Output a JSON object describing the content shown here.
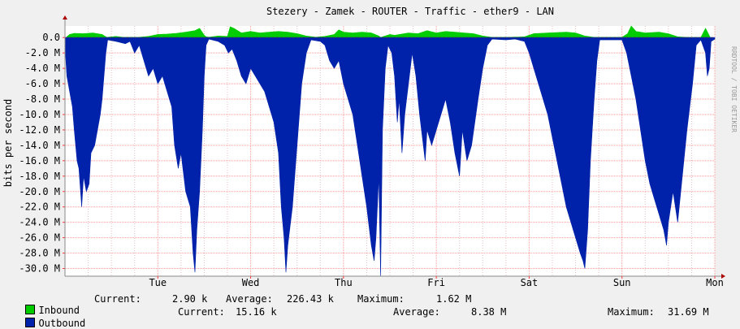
{
  "chart_data": {
    "type": "area",
    "title": "Stezery - Zamek - ROUTER - Traffic - ether9 - LAN",
    "ylabel": "bits per second",
    "watermark": "RRDTOOL / TOBI OETIKER",
    "ylim": [
      -31000000,
      1500000
    ],
    "y_ticks": [
      {
        "value": 0,
        "label": "0.0"
      },
      {
        "value": -2000000,
        "label": "-2.0 M"
      },
      {
        "value": -4000000,
        "label": "-4.0 M"
      },
      {
        "value": -6000000,
        "label": "-6.0 M"
      },
      {
        "value": -8000000,
        "label": "-8.0 M"
      },
      {
        "value": -10000000,
        "label": "-10.0 M"
      },
      {
        "value": -12000000,
        "label": "-12.0 M"
      },
      {
        "value": -14000000,
        "label": "-14.0 M"
      },
      {
        "value": -16000000,
        "label": "-16.0 M"
      },
      {
        "value": -18000000,
        "label": "-18.0 M"
      },
      {
        "value": -20000000,
        "label": "-20.0 M"
      },
      {
        "value": -22000000,
        "label": "-22.0 M"
      },
      {
        "value": -24000000,
        "label": "-24.0 M"
      },
      {
        "value": -26000000,
        "label": "-26.0 M"
      },
      {
        "value": -28000000,
        "label": "-28.0 M"
      },
      {
        "value": -30000000,
        "label": "-30.0 M"
      }
    ],
    "x_unit": "day",
    "xlim": [
      0,
      7
    ],
    "x_ticks": [
      {
        "value": 1,
        "label": "Tue"
      },
      {
        "value": 2,
        "label": "Wed"
      },
      {
        "value": 3,
        "label": "Thu"
      },
      {
        "value": 4,
        "label": "Fri"
      },
      {
        "value": 5,
        "label": "Sat"
      },
      {
        "value": 6,
        "label": "Sun"
      },
      {
        "value": 7,
        "label": "Mon"
      }
    ],
    "grid": true,
    "legend_position": "bottom",
    "series": [
      {
        "name": "Inbound",
        "color": "#00cc00",
        "current": "2.90 k",
        "average": "226.43 k",
        "maximum": "1.62 M",
        "points": [
          [
            0.02,
            100000.0
          ],
          [
            0.05,
            400000.0
          ],
          [
            0.1,
            550000.0
          ],
          [
            0.2,
            500000.0
          ],
          [
            0.3,
            600000.0
          ],
          [
            0.4,
            400000.0
          ],
          [
            0.45,
            30000.0
          ],
          [
            0.55,
            150000.0
          ],
          [
            0.62,
            50000.0
          ],
          [
            0.7,
            30000.0
          ],
          [
            0.8,
            40000.0
          ],
          [
            0.9,
            150000.0
          ],
          [
            1.0,
            400000.0
          ],
          [
            1.1,
            450000.0
          ],
          [
            1.2,
            550000.0
          ],
          [
            1.3,
            700000.0
          ],
          [
            1.4,
            900000.0
          ],
          [
            1.45,
            1200000.0
          ],
          [
            1.5,
            300000.0
          ],
          [
            1.52,
            100000.0
          ],
          [
            1.55,
            50000.0
          ],
          [
            1.65,
            200000.0
          ],
          [
            1.75,
            150000.0
          ],
          [
            1.78,
            1400000.0
          ],
          [
            1.82,
            1200000.0
          ],
          [
            1.9,
            600000.0
          ],
          [
            2.0,
            800000.0
          ],
          [
            2.1,
            600000.0
          ],
          [
            2.2,
            700000.0
          ],
          [
            2.3,
            800000.0
          ],
          [
            2.4,
            700000.0
          ],
          [
            2.5,
            500000.0
          ],
          [
            2.6,
            200000.0
          ],
          [
            2.7,
            50000.0
          ],
          [
            2.8,
            150000.0
          ],
          [
            2.9,
            400000.0
          ],
          [
            2.95,
            1000000.0
          ],
          [
            3.0,
            700000.0
          ],
          [
            3.1,
            600000.0
          ],
          [
            3.2,
            700000.0
          ],
          [
            3.3,
            600000.0
          ],
          [
            3.38,
            200000.0
          ],
          [
            3.4,
            20000.0
          ],
          [
            3.5,
            400000.0
          ],
          [
            3.55,
            300000.0
          ],
          [
            3.7,
            600000.0
          ],
          [
            3.8,
            500000.0
          ],
          [
            3.9,
            900000.0
          ],
          [
            4.0,
            600000.0
          ],
          [
            4.1,
            800000.0
          ],
          [
            4.2,
            700000.0
          ],
          [
            4.3,
            600000.0
          ],
          [
            4.4,
            500000.0
          ],
          [
            4.5,
            200000.0
          ],
          [
            4.6,
            30000.0
          ],
          [
            4.8,
            40000.0
          ],
          [
            4.95,
            100000.0
          ],
          [
            5.05,
            500000.0
          ],
          [
            5.2,
            600000.0
          ],
          [
            5.4,
            700000.0
          ],
          [
            5.5,
            600000.0
          ],
          [
            5.6,
            200000.0
          ],
          [
            5.7,
            30000.0
          ],
          [
            5.9,
            30000.0
          ],
          [
            6.0,
            30000.0
          ],
          [
            6.06,
            500000.0
          ],
          [
            6.1,
            1500000.0
          ],
          [
            6.15,
            800000.0
          ],
          [
            6.25,
            600000.0
          ],
          [
            6.4,
            700000.0
          ],
          [
            6.5,
            500000.0
          ],
          [
            6.6,
            100000.0
          ],
          [
            6.7,
            30000.0
          ],
          [
            6.85,
            20000.0
          ],
          [
            6.9,
            1200000.0
          ],
          [
            6.93,
            500000.0
          ],
          [
            6.95,
            30000.0
          ]
        ]
      },
      {
        "name": "Outbound",
        "color": "#0022aa",
        "current": "15.16 k",
        "average": "8.38 M",
        "maximum": "31.69 M",
        "points": [
          [
            0.0,
            -1000000.0
          ],
          [
            0.02,
            -5000000.0
          ],
          [
            0.05,
            -7000000.0
          ],
          [
            0.08,
            -9000000.0
          ],
          [
            0.1,
            -12000000.0
          ],
          [
            0.13,
            -16000000.0
          ],
          [
            0.15,
            -17000000.0
          ],
          [
            0.18,
            -22000000.0
          ],
          [
            0.2,
            -18000000.0
          ],
          [
            0.23,
            -20000000.0
          ],
          [
            0.26,
            -19000000.0
          ],
          [
            0.28,
            -15000000.0
          ],
          [
            0.32,
            -14000000.0
          ],
          [
            0.35,
            -12000000.0
          ],
          [
            0.38,
            -10000000.0
          ],
          [
            0.4,
            -8000000.0
          ],
          [
            0.42,
            -5000000.0
          ],
          [
            0.44,
            -2000000.0
          ],
          [
            0.46,
            -300000.0
          ],
          [
            0.55,
            -500000.0
          ],
          [
            0.65,
            -800000.0
          ],
          [
            0.7,
            -500000.0
          ],
          [
            0.75,
            -2000000.0
          ],
          [
            0.8,
            -1000000.0
          ],
          [
            0.85,
            -3000000.0
          ],
          [
            0.9,
            -5000000.0
          ],
          [
            0.95,
            -4000000.0
          ],
          [
            1.0,
            -6000000.0
          ],
          [
            1.05,
            -5000000.0
          ],
          [
            1.1,
            -7000000.0
          ],
          [
            1.15,
            -9000000.0
          ],
          [
            1.18,
            -14000000.0
          ],
          [
            1.22,
            -17000000.0
          ],
          [
            1.25,
            -15000000.0
          ],
          [
            1.3,
            -20000000.0
          ],
          [
            1.35,
            -22000000.0
          ],
          [
            1.38,
            -28000000.0
          ],
          [
            1.4,
            -30500000.0
          ],
          [
            1.42,
            -25000000.0
          ],
          [
            1.45,
            -20000000.0
          ],
          [
            1.48,
            -12000000.0
          ],
          [
            1.5,
            -5000000.0
          ],
          [
            1.52,
            -1000000.0
          ],
          [
            1.55,
            -200000.0
          ],
          [
            1.65,
            -500000.0
          ],
          [
            1.72,
            -1000000.0
          ],
          [
            1.76,
            -2000000.0
          ],
          [
            1.8,
            -1500000.0
          ],
          [
            1.85,
            -3000000.0
          ],
          [
            1.9,
            -5000000.0
          ],
          [
            1.95,
            -6000000.0
          ],
          [
            2.0,
            -4000000.0
          ],
          [
            2.05,
            -5000000.0
          ],
          [
            2.1,
            -6000000.0
          ],
          [
            2.15,
            -7000000.0
          ],
          [
            2.2,
            -9000000.0
          ],
          [
            2.25,
            -11000000.0
          ],
          [
            2.3,
            -15000000.0
          ],
          [
            2.33,
            -22000000.0
          ],
          [
            2.36,
            -26000000.0
          ],
          [
            2.38,
            -30500000.0
          ],
          [
            2.4,
            -27000000.0
          ],
          [
            2.45,
            -22000000.0
          ],
          [
            2.5,
            -14000000.0
          ],
          [
            2.55,
            -6000000.0
          ],
          [
            2.6,
            -2000000.0
          ],
          [
            2.65,
            -300000.0
          ],
          [
            2.75,
            -500000.0
          ],
          [
            2.8,
            -1000000.0
          ],
          [
            2.85,
            -3000000.0
          ],
          [
            2.9,
            -4000000.0
          ],
          [
            2.95,
            -3000000.0
          ],
          [
            3.0,
            -6000000.0
          ],
          [
            3.05,
            -8000000.0
          ],
          [
            3.1,
            -10000000.0
          ],
          [
            3.15,
            -14000000.0
          ],
          [
            3.2,
            -18000000.0
          ],
          [
            3.25,
            -22000000.0
          ],
          [
            3.3,
            -27000000.0
          ],
          [
            3.33,
            -29000000.0
          ],
          [
            3.35,
            -26000000.0
          ],
          [
            3.38,
            -18000000.0
          ],
          [
            3.4,
            -31000000.0
          ],
          [
            3.42,
            -12000000.0
          ],
          [
            3.45,
            -4000000.0
          ],
          [
            3.48,
            -1000000.0
          ],
          [
            3.52,
            -2000000.0
          ],
          [
            3.55,
            -5000000.0
          ],
          [
            3.58,
            -11000000.0
          ],
          [
            3.6,
            -8000000.0
          ],
          [
            3.63,
            -15000000.0
          ],
          [
            3.66,
            -10000000.0
          ],
          [
            3.7,
            -6000000.0
          ],
          [
            3.74,
            -2000000.0
          ],
          [
            3.78,
            -5000000.0
          ],
          [
            3.82,
            -10000000.0
          ],
          [
            3.85,
            -13000000.0
          ],
          [
            3.88,
            -16000000.0
          ],
          [
            3.9,
            -12000000.0
          ],
          [
            3.95,
            -14000000.0
          ],
          [
            4.0,
            -12000000.0
          ],
          [
            4.05,
            -10000000.0
          ],
          [
            4.1,
            -8000000.0
          ],
          [
            4.15,
            -11000000.0
          ],
          [
            4.2,
            -15000000.0
          ],
          [
            4.25,
            -18000000.0
          ],
          [
            4.28,
            -12000000.0
          ],
          [
            4.33,
            -16000000.0
          ],
          [
            4.38,
            -14000000.0
          ],
          [
            4.45,
            -8000000.0
          ],
          [
            4.5,
            -4000000.0
          ],
          [
            4.55,
            -1000000.0
          ],
          [
            4.6,
            -200000.0
          ],
          [
            4.75,
            -300000.0
          ],
          [
            4.85,
            -200000.0
          ],
          [
            4.95,
            -500000.0
          ],
          [
            5.0,
            -2000000.0
          ],
          [
            5.05,
            -4000000.0
          ],
          [
            5.1,
            -6000000.0
          ],
          [
            5.15,
            -8000000.0
          ],
          [
            5.2,
            -10000000.0
          ],
          [
            5.25,
            -13000000.0
          ],
          [
            5.3,
            -16000000.0
          ],
          [
            5.35,
            -19000000.0
          ],
          [
            5.4,
            -22000000.0
          ],
          [
            5.45,
            -24000000.0
          ],
          [
            5.5,
            -26000000.0
          ],
          [
            5.55,
            -28000000.0
          ],
          [
            5.58,
            -29000000.0
          ],
          [
            5.6,
            -30000000.0
          ],
          [
            5.63,
            -25000000.0
          ],
          [
            5.66,
            -16000000.0
          ],
          [
            5.7,
            -8000000.0
          ],
          [
            5.73,
            -3000000.0
          ],
          [
            5.76,
            -300000.0
          ],
          [
            5.9,
            -300000.0
          ],
          [
            6.0,
            -300000.0
          ],
          [
            6.05,
            -2000000.0
          ],
          [
            6.1,
            -5000000.0
          ],
          [
            6.15,
            -8000000.0
          ],
          [
            6.2,
            -12000000.0
          ],
          [
            6.25,
            -16000000.0
          ],
          [
            6.3,
            -19000000.0
          ],
          [
            6.35,
            -21000000.0
          ],
          [
            6.4,
            -23000000.0
          ],
          [
            6.45,
            -25000000.0
          ],
          [
            6.48,
            -27000000.0
          ],
          [
            6.5,
            -24000000.0
          ],
          [
            6.55,
            -20000000.0
          ],
          [
            6.6,
            -24000000.0
          ],
          [
            6.65,
            -18000000.0
          ],
          [
            6.7,
            -12000000.0
          ],
          [
            6.73,
            -9000000.0
          ],
          [
            6.76,
            -6000000.0
          ],
          [
            6.8,
            -1000000.0
          ],
          [
            6.85,
            -300000.0
          ],
          [
            6.9,
            -2000000.0
          ],
          [
            6.92,
            -5000000.0
          ],
          [
            6.94,
            -4000000.0
          ],
          [
            6.96,
            -500000.0
          ],
          [
            7.0,
            -200000.0
          ]
        ]
      }
    ]
  },
  "legend": {
    "current_label": "Current:",
    "average_label": "Average:",
    "maximum_label": "Maximum:"
  }
}
